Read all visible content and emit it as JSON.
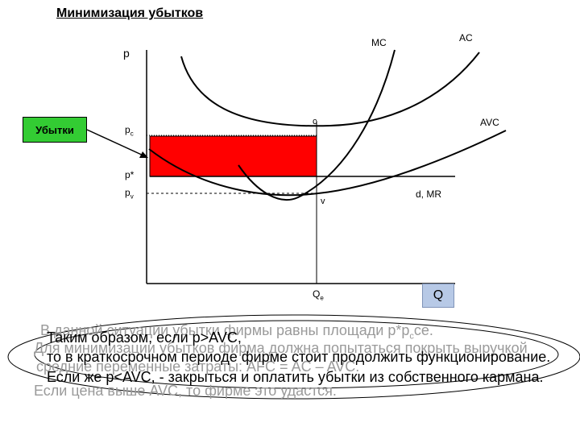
{
  "title": "Минимизация убытков",
  "losses_label": "Убытки",
  "axis": {
    "y_label": "p",
    "x_label": "Q"
  },
  "price_labels": {
    "pc": "p",
    "pc_sub": "c",
    "pstar": "p*",
    "pv": "p",
    "pv_sub": "v"
  },
  "point_labels": {
    "c": "c",
    "v": "v",
    "qe": "Q",
    "qe_sub": "e"
  },
  "curve_labels": {
    "mc": "MC",
    "ac": "AC",
    "avc": "AVC",
    "demand": "d, MR"
  },
  "colors": {
    "loss_area": "#ff0000",
    "loss_box": "#33cc33",
    "q_box": "#b7c9e6"
  },
  "ghost_text": {
    "line1a": "В данной ситуации убытки фирмы равны площади p*p",
    "line1a_sub": "c",
    "line1b": "ce.",
    "line2": "Для минимизации убытков фирма должна попытаться покрыть выручкой",
    "line3": "средние переменные затраты: АFC = AC – AVC.",
    "line4": "Если цена выше AVC, то фирме это удастся."
  },
  "front_text": {
    "line1": "Таким образом, если p>AVC,",
    "line2": "то в краткосрочном периоде фирме стоит продолжить функционирование.",
    "line3": "Если же p<AVC, - закрыться и оплатить убытки из собственного кармана."
  }
}
